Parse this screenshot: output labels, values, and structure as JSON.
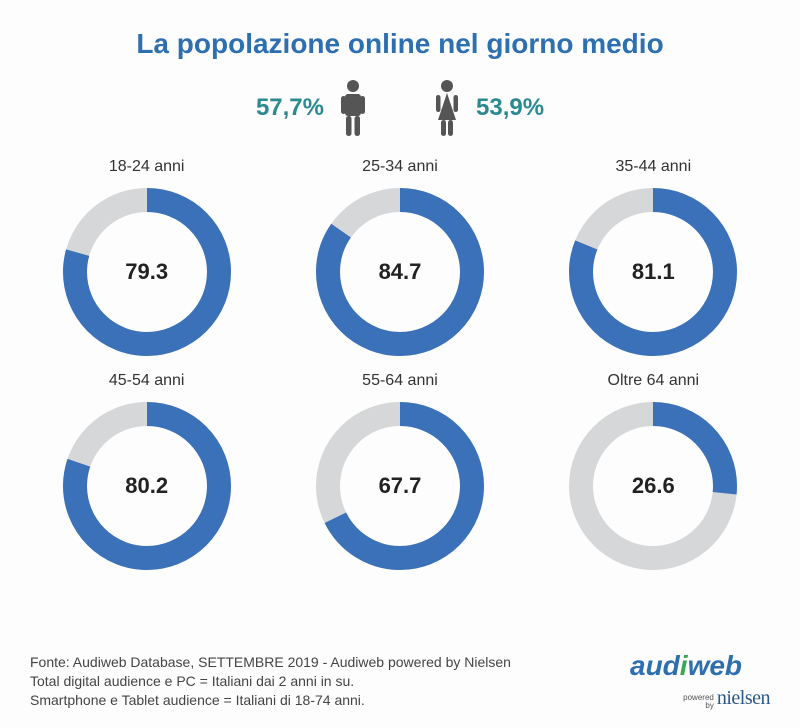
{
  "title": "La popolazione online nel giorno medio",
  "title_color": "#2e6fb0",
  "gender": {
    "male": {
      "pct": "57,7%",
      "color": "#2a8a90",
      "icon_color": "#555"
    },
    "female": {
      "pct": "53,9%",
      "color": "#2a8a90",
      "icon_color": "#555"
    }
  },
  "donut_style": {
    "ring_color": "#3a71b8",
    "track_color": "#d5d7d9",
    "value_color": "#222",
    "label_color": "#333",
    "stroke_width": 24,
    "radius": 72,
    "size": 180
  },
  "charts": [
    {
      "label": "18-24 anni",
      "value": 79.3,
      "display": "79.3"
    },
    {
      "label": "25-34 anni",
      "value": 84.7,
      "display": "84.7"
    },
    {
      "label": "35-44 anni",
      "value": 81.1,
      "display": "81.1"
    },
    {
      "label": "45-54 anni",
      "value": 80.2,
      "display": "80.2"
    },
    {
      "label": "55-64 anni",
      "value": 67.7,
      "display": "67.7"
    },
    {
      "label": "Oltre 64 anni",
      "value": 26.6,
      "display": "26.6"
    }
  ],
  "footer": {
    "line1": "Fonte: Audiweb Database, SETTEMBRE 2019 - Audiweb powered by Nielsen",
    "line2": "Total digital audience e PC = Italiani dai 2 anni in su.",
    "line3": "Smartphone e Tablet audience = Italiani di 18-74 anni."
  },
  "brand": {
    "audiweb": "audiweb",
    "nielsen": "nielsen",
    "powered": "powered",
    "by": "by",
    "audiweb_blue": "#2e6fb0",
    "audiweb_green": "#3aa757",
    "nielsen_color": "#2a5a8a"
  }
}
